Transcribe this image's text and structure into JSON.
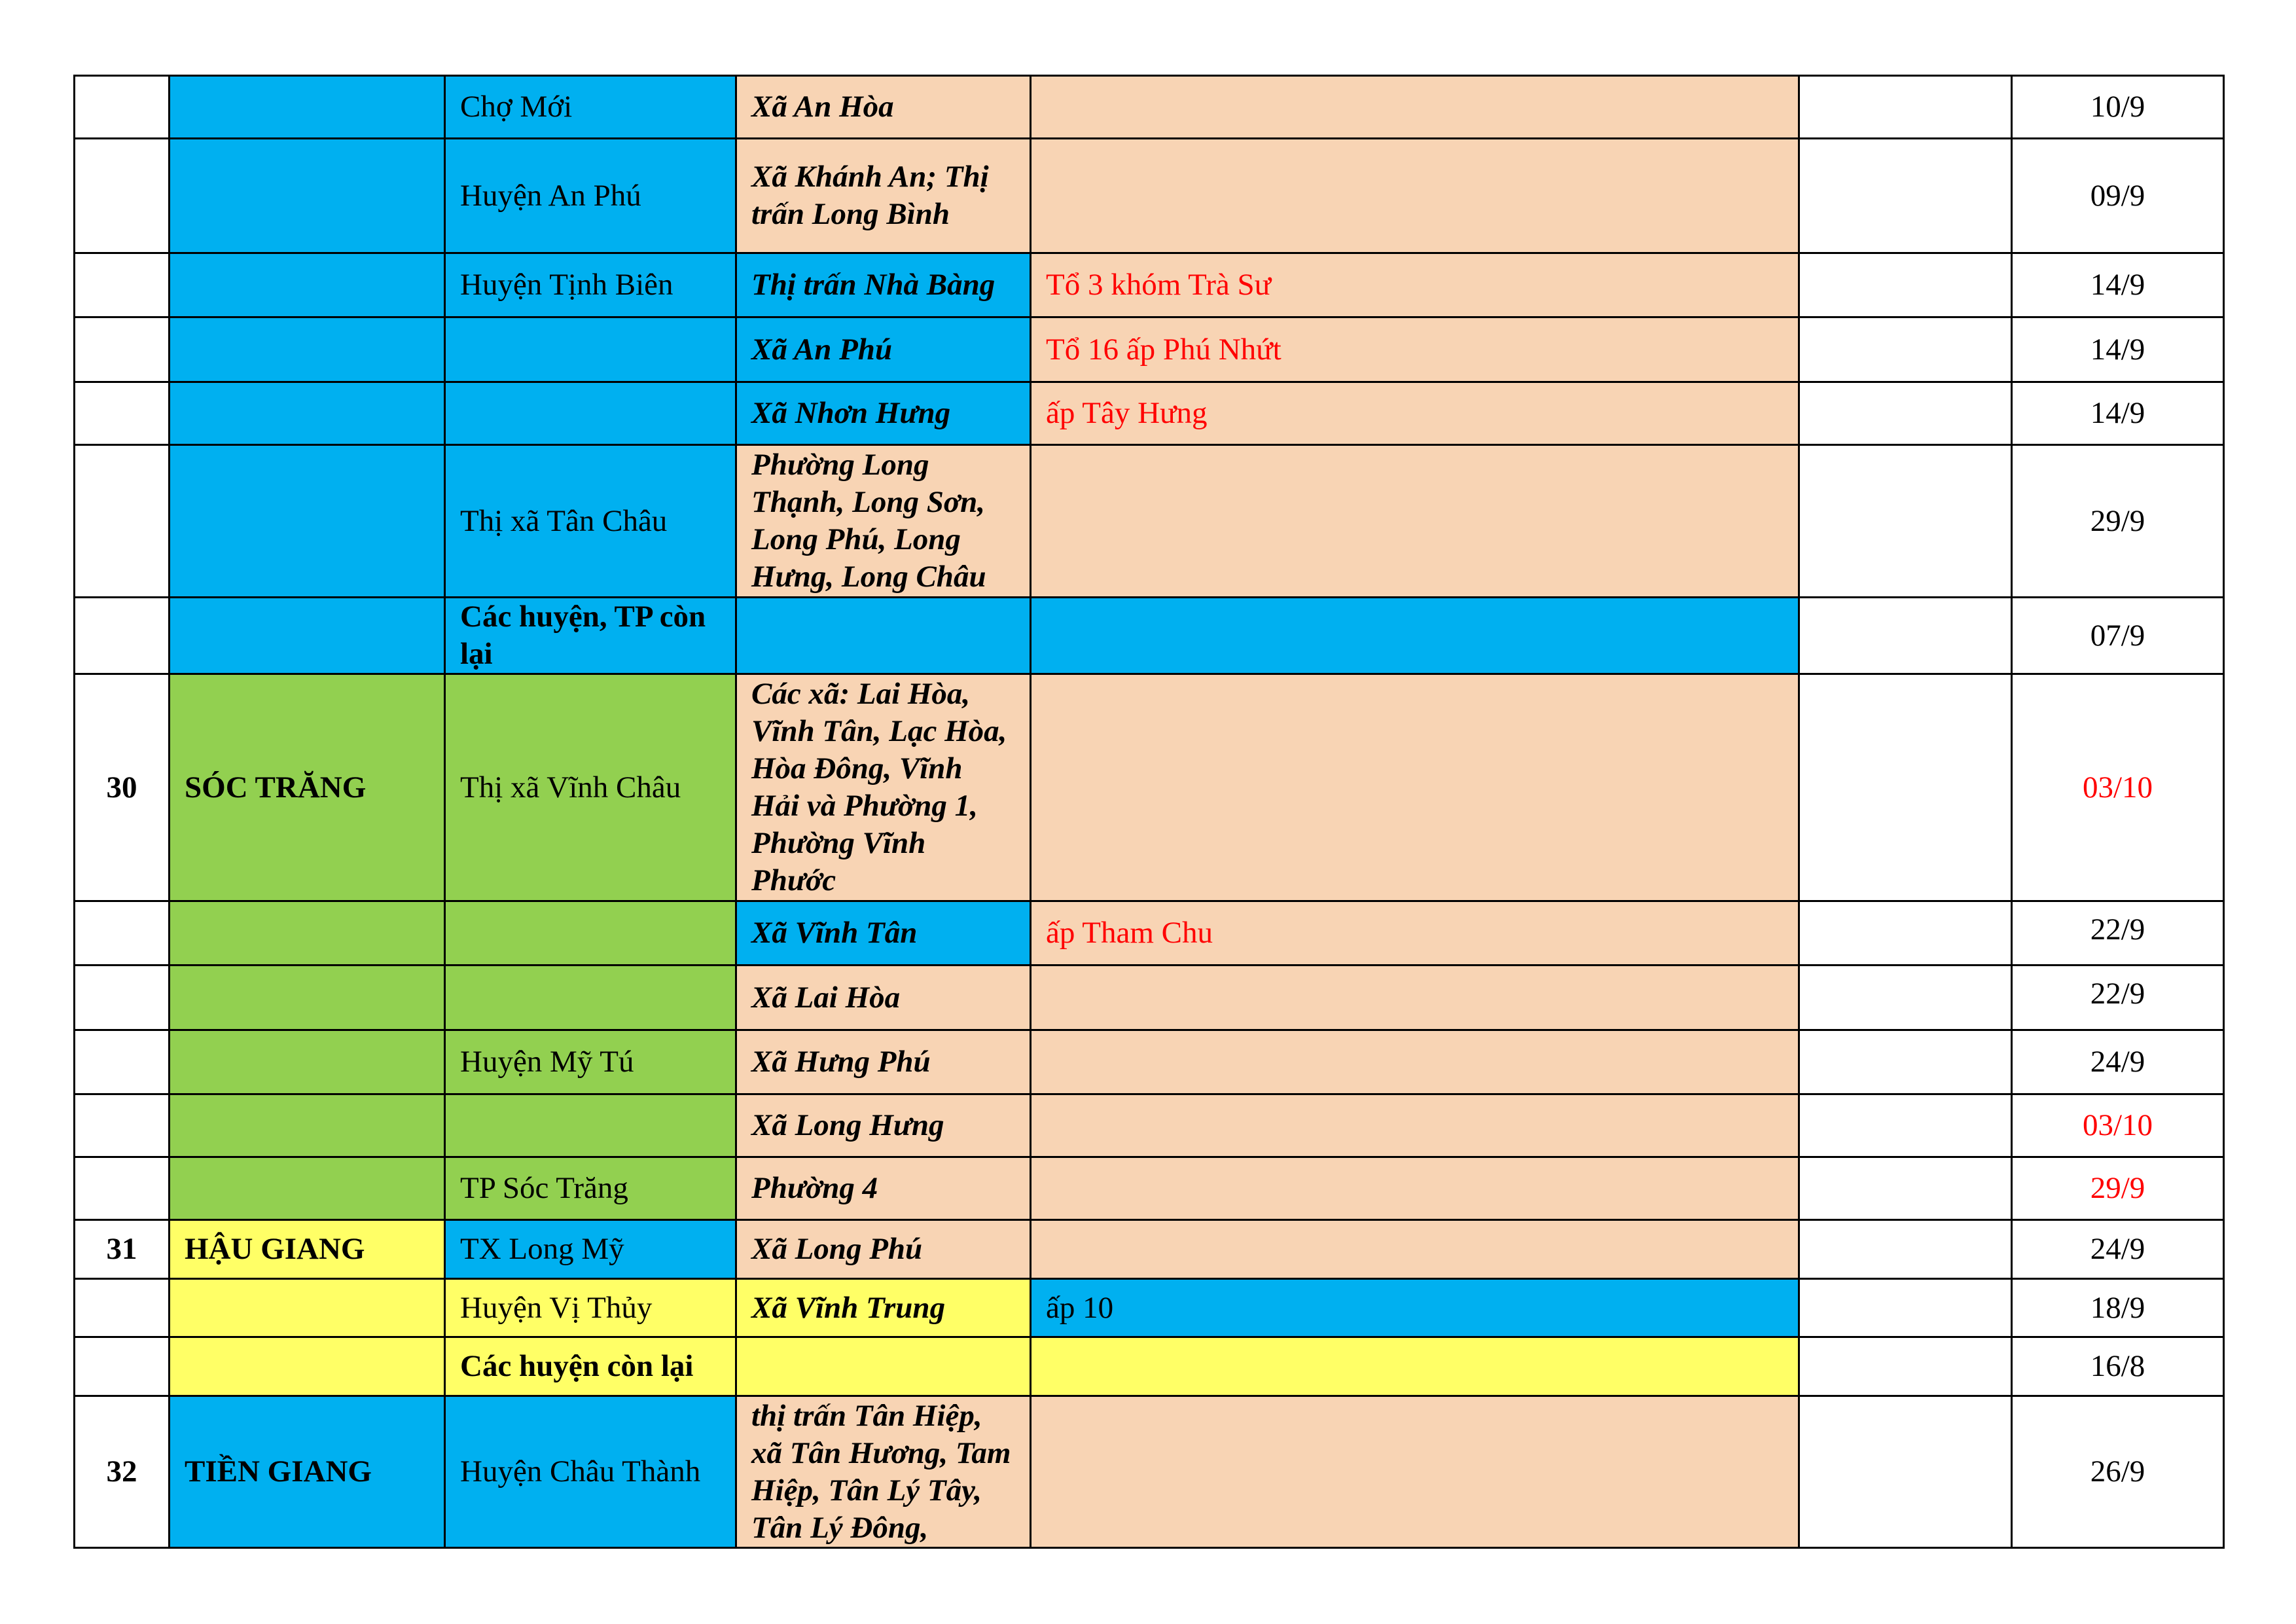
{
  "colors": {
    "blue": "#00B0F0",
    "peach": "#F8D4B4",
    "green": "#92D050",
    "yellow": "#FFFF66",
    "white": "#FFFFFF",
    "red": "#FF0000"
  },
  "rows": [
    {
      "num": "",
      "province": "",
      "district": "Chợ Mới",
      "commune": "Xã An Hòa",
      "detail": "",
      "date": "10/9",
      "bg": [
        "white",
        "blue",
        "blue",
        "peach",
        "peach",
        "white",
        "white"
      ]
    },
    {
      "num": "",
      "province": "",
      "district": "Huyện An Phú",
      "commune": "Xã Khánh An; Thị trấn Long Bình",
      "detail": "",
      "date": "09/9",
      "bg": [
        "white",
        "blue",
        "blue",
        "peach",
        "peach",
        "white",
        "white"
      ]
    },
    {
      "num": "",
      "province": "",
      "district": "Huyện Tịnh Biên",
      "commune": "Thị trấn Nhà Bàng",
      "detail": "Tổ 3 khóm Trà Sư",
      "detail_red": true,
      "date": "14/9",
      "bg": [
        "white",
        "blue",
        "blue",
        "blue",
        "peach",
        "white",
        "white"
      ]
    },
    {
      "num": "",
      "province": "",
      "district": "",
      "commune": "Xã An Phú",
      "detail": "Tổ 16 ấp Phú Nhứt",
      "detail_red": true,
      "date": "14/9",
      "bg": [
        "white",
        "blue",
        "blue",
        "blue",
        "peach",
        "white",
        "white"
      ]
    },
    {
      "num": "",
      "province": "",
      "district": "",
      "commune": "Xã Nhơn Hưng",
      "detail": "ấp Tây Hưng",
      "detail_red": true,
      "date": "14/9",
      "bg": [
        "white",
        "blue",
        "blue",
        "blue",
        "peach",
        "white",
        "white"
      ]
    },
    {
      "num": "",
      "province": "",
      "district": "Thị xã Tân Châu",
      "commune": "Phường Long Thạnh, Long Sơn, Long Phú, Long Hưng, Long Châu",
      "detail": "",
      "date": "29/9",
      "bg": [
        "white",
        "blue",
        "blue",
        "peach",
        "peach",
        "white",
        "white"
      ]
    },
    {
      "num": "",
      "province": "",
      "district": "Các huyện, TP còn lại",
      "district_bold": true,
      "commune": "",
      "detail": "",
      "date": "07/9",
      "bg": [
        "white",
        "blue",
        "blue",
        "blue",
        "blue",
        "white",
        "white"
      ]
    },
    {
      "num": "30",
      "province": "SÓC TRĂNG",
      "district": "Thị xã Vĩnh Châu",
      "commune": "Các xã: Lai Hòa, Vĩnh Tân, Lạc Hòa, Hòa Đông, Vĩnh Hải và Phường 1, Phường Vĩnh Phước",
      "detail": "",
      "date": "03/10",
      "date_red": true,
      "bg": [
        "white",
        "green",
        "green",
        "peach",
        "peach",
        "white",
        "white"
      ]
    },
    {
      "num": "",
      "province": "",
      "district": "",
      "commune": "Xã Vĩnh Tân",
      "detail": "ấp Tham Chu",
      "detail_red": true,
      "date": "22/9",
      "bg": [
        "white",
        "green",
        "green",
        "blue",
        "peach",
        "white",
        "white"
      ]
    },
    {
      "num": "",
      "province": "",
      "district": "",
      "commune": "Xã Lai Hòa",
      "detail": "",
      "date": "22/9",
      "bg": [
        "white",
        "green",
        "green",
        "peach",
        "peach",
        "white",
        "white"
      ]
    },
    {
      "num": "",
      "province": "",
      "district": "Huyện Mỹ Tú",
      "commune": "Xã Hưng Phú",
      "detail": "",
      "date": "24/9",
      "bg": [
        "white",
        "green",
        "green",
        "peach",
        "peach",
        "white",
        "white"
      ]
    },
    {
      "num": "",
      "province": "",
      "district": "",
      "commune": "Xã Long Hưng",
      "detail": "",
      "date": "03/10",
      "date_red": true,
      "bg": [
        "white",
        "green",
        "green",
        "peach",
        "peach",
        "white",
        "white"
      ]
    },
    {
      "num": "",
      "province": "",
      "district": "TP Sóc Trăng",
      "commune": "Phường 4",
      "detail": "",
      "date": "29/9",
      "date_red": true,
      "bg": [
        "white",
        "green",
        "green",
        "peach",
        "peach",
        "white",
        "white"
      ]
    },
    {
      "num": "31",
      "province": "HẬU GIANG",
      "district": "TX Long Mỹ",
      "commune": "Xã Long Phú",
      "detail": "",
      "date": "24/9",
      "bg": [
        "white",
        "yellow",
        "blue",
        "peach",
        "peach",
        "white",
        "white"
      ]
    },
    {
      "num": "",
      "province": "",
      "district": "Huyện Vị Thủy",
      "commune": "Xã Vĩnh Trung",
      "detail": "ấp 10",
      "date": "18/9",
      "bg": [
        "white",
        "yellow",
        "yellow",
        "yellow",
        "blue",
        "white",
        "white"
      ]
    },
    {
      "num": "",
      "province": "",
      "district": "Các huyện còn lại",
      "district_bold": true,
      "commune": "",
      "detail": "",
      "date": "16/8",
      "bg": [
        "white",
        "yellow",
        "yellow",
        "yellow",
        "yellow",
        "white",
        "white"
      ]
    },
    {
      "num": "32",
      "province": "TIỀN GIANG",
      "district": "Huyện Châu Thành",
      "commune": "thị trấn Tân Hiệp, xã Tân Hương, Tam Hiệp, Tân Lý Tây, Tân Lý Đông,",
      "detail": "",
      "date": "26/9",
      "bg": [
        "white",
        "blue",
        "blue",
        "peach",
        "peach",
        "white",
        "white"
      ]
    }
  ]
}
